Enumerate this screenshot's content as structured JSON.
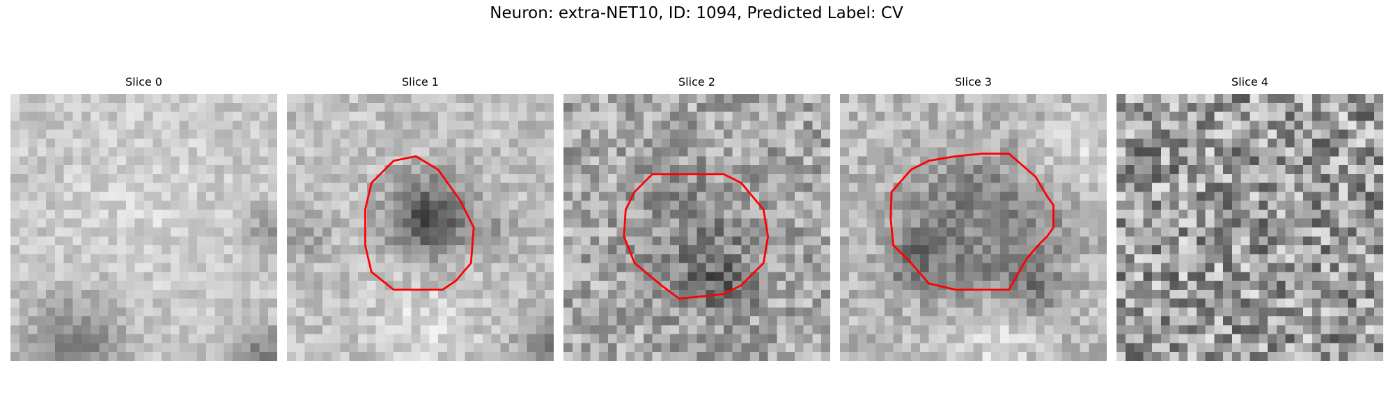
{
  "figure": {
    "title": "Neuron: extra-NET10, ID: 1094, Predicted Label: CV",
    "outline_color": "#ff0000"
  },
  "panels": [
    {
      "title": "Slice 0",
      "has_outline": false
    },
    {
      "title": "Slice 1",
      "has_outline": true
    },
    {
      "title": "Slice 2",
      "has_outline": true
    },
    {
      "title": "Slice 3",
      "has_outline": true
    },
    {
      "title": "Slice 4",
      "has_outline": false
    }
  ]
}
